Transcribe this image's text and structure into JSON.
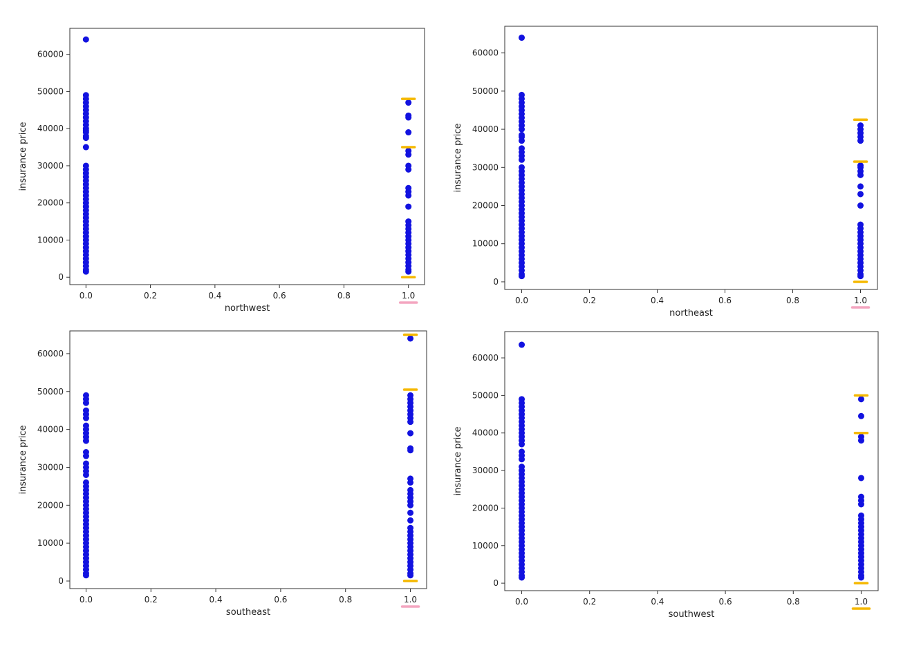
{
  "colors": {
    "point": "#1212e0",
    "highlight_bar": "#f5b800",
    "highlight_underline": "#f4a6c0",
    "axes": "#333333"
  },
  "chart_data": [
    {
      "type": "scatter",
      "xlabel": "northwest",
      "ylabel": "insurance price",
      "xlim": [
        -0.05,
        1.05
      ],
      "ylim": [
        -2000,
        67000
      ],
      "xticks": [
        "0.0",
        "0.2",
        "0.4",
        "0.6",
        "0.8",
        "1.0"
      ],
      "yticks": [
        "0",
        "10000",
        "20000",
        "30000",
        "40000",
        "50000",
        "60000"
      ],
      "x0_values": [
        64000,
        49000,
        48000,
        47000,
        46000,
        45000,
        44000,
        43000,
        42000,
        41000,
        40000,
        39500,
        39000,
        38000,
        37500,
        35000,
        30000,
        29000,
        28000,
        27000,
        26000,
        25000,
        24000,
        23000,
        22000,
        21000,
        20000,
        19000,
        18000,
        17000,
        16000,
        15000,
        14000,
        13000,
        12000,
        11000,
        10000,
        9000,
        8000,
        7000,
        6000,
        5000,
        4000,
        3000,
        2000,
        1500
      ],
      "x1_values": [
        47000,
        43500,
        43000,
        39000,
        34000,
        33000,
        30000,
        29000,
        24000,
        23000,
        22000,
        19000,
        15000,
        14000,
        13000,
        12000,
        11000,
        10000,
        9000,
        8000,
        7000,
        6000,
        5000,
        4000,
        3000,
        2000,
        1500
      ],
      "highlight_marks": [
        48000,
        35000,
        0
      ],
      "underline_label": "1.0"
    },
    {
      "type": "scatter",
      "xlabel": "northeast",
      "ylabel": "insurance price",
      "xlim": [
        -0.05,
        1.05
      ],
      "ylim": [
        -2000,
        67000
      ],
      "xticks": [
        "0.0",
        "0.2",
        "0.4",
        "0.6",
        "0.8",
        "1.0"
      ],
      "yticks": [
        "0",
        "10000",
        "20000",
        "30000",
        "40000",
        "50000",
        "60000"
      ],
      "x0_values": [
        64000,
        49000,
        48000,
        47000,
        46000,
        45000,
        44000,
        43000,
        42000,
        41000,
        40000,
        38500,
        38000,
        37000,
        35000,
        34000,
        33000,
        32000,
        30000,
        29000,
        28000,
        27000,
        26000,
        25000,
        24000,
        23000,
        22000,
        21000,
        20000,
        19000,
        18000,
        17000,
        16000,
        15000,
        14000,
        13000,
        12000,
        11000,
        10000,
        9000,
        8000,
        7000,
        6000,
        5000,
        4000,
        3000,
        2000,
        1500
      ],
      "x1_values": [
        41000,
        40000,
        39000,
        38000,
        37000,
        30500,
        30000,
        29000,
        28000,
        25000,
        23000,
        20000,
        15000,
        14000,
        13000,
        12000,
        11000,
        10000,
        9000,
        8000,
        7000,
        6000,
        5000,
        4000,
        3000,
        2000,
        1500
      ],
      "highlight_marks": [
        42500,
        31500,
        0
      ],
      "underline_label": "1.0"
    },
    {
      "type": "scatter",
      "xlabel": "southeast",
      "ylabel": "insurance price",
      "xlim": [
        -0.05,
        1.05
      ],
      "ylim": [
        -2000,
        66000
      ],
      "xticks": [
        "0.0",
        "0.2",
        "0.4",
        "0.6",
        "0.8",
        "1.0"
      ],
      "yticks": [
        "0",
        "10000",
        "20000",
        "30000",
        "40000",
        "50000",
        "60000"
      ],
      "x0_values": [
        49000,
        48000,
        47000,
        45000,
        44000,
        43000,
        41000,
        40000,
        39000,
        38000,
        37000,
        34000,
        33000,
        31000,
        30000,
        29000,
        28000,
        26000,
        25000,
        24000,
        23000,
        22000,
        21000,
        20000,
        19000,
        18000,
        17000,
        16000,
        15000,
        14000,
        13000,
        12000,
        11000,
        10000,
        9000,
        8000,
        7000,
        6000,
        5000,
        4000,
        3000,
        2000,
        1500
      ],
      "x1_values": [
        64000,
        49000,
        48000,
        47000,
        46000,
        45000,
        44000,
        43000,
        42000,
        39000,
        35000,
        34500,
        27000,
        26000,
        24000,
        23000,
        22000,
        21000,
        20000,
        18000,
        16000,
        14000,
        13000,
        12000,
        11000,
        10000,
        9000,
        8000,
        7000,
        6000,
        5000,
        4000,
        3000,
        2000,
        1500
      ],
      "highlight_marks": [
        65000,
        50500,
        0
      ],
      "underline_label": "1.0"
    },
    {
      "type": "scatter",
      "xlabel": "southwest",
      "ylabel": "insurance price",
      "xlim": [
        -0.05,
        1.05
      ],
      "ylim": [
        -2000,
        67000
      ],
      "xticks": [
        "0.0",
        "0.2",
        "0.4",
        "0.6",
        "0.8",
        "1.0"
      ],
      "yticks": [
        "0",
        "10000",
        "20000",
        "30000",
        "40000",
        "50000",
        "60000"
      ],
      "x0_values": [
        63500,
        49000,
        48000,
        47000,
        46000,
        45000,
        44000,
        43000,
        42000,
        41000,
        40000,
        39000,
        38000,
        37000,
        35000,
        34000,
        33000,
        31000,
        30000,
        29000,
        28000,
        27000,
        26000,
        25000,
        24000,
        23000,
        22000,
        21000,
        20000,
        19000,
        18000,
        17000,
        16000,
        15000,
        14000,
        13000,
        12000,
        11000,
        10000,
        9000,
        8000,
        7000,
        6000,
        5000,
        4000,
        3000,
        2000,
        1500
      ],
      "x1_values": [
        49000,
        44500,
        39000,
        38000,
        28000,
        23000,
        22000,
        21000,
        18000,
        17000,
        16000,
        15000,
        14000,
        13000,
        12000,
        11000,
        10000,
        9000,
        8000,
        7000,
        6000,
        5000,
        4000,
        3000,
        2000,
        1500
      ],
      "highlight_marks": [
        50000,
        40000,
        0
      ],
      "underline_label": "1.0"
    }
  ]
}
